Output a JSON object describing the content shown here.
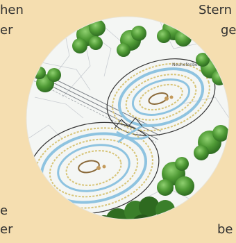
{
  "text_fragments": {
    "top_left_1": "hen",
    "top_left_2": "er",
    "top_right_1": "Stern",
    "top_right_2": "ge",
    "bottom_left_1": "e",
    "bottom_left_2": "er",
    "bottom_right_1": "be"
  },
  "map": {
    "village_label": "Neuhofenberg",
    "icon": "map-circle-illustration"
  },
  "colors": {
    "page_background": "#f5deb0",
    "map_paper": "#f4f6f4",
    "water_blue": "#8ec3e0",
    "contour_gold": "#d7c477",
    "tree_green": "#3f8c2e",
    "dark_line": "#333333"
  }
}
